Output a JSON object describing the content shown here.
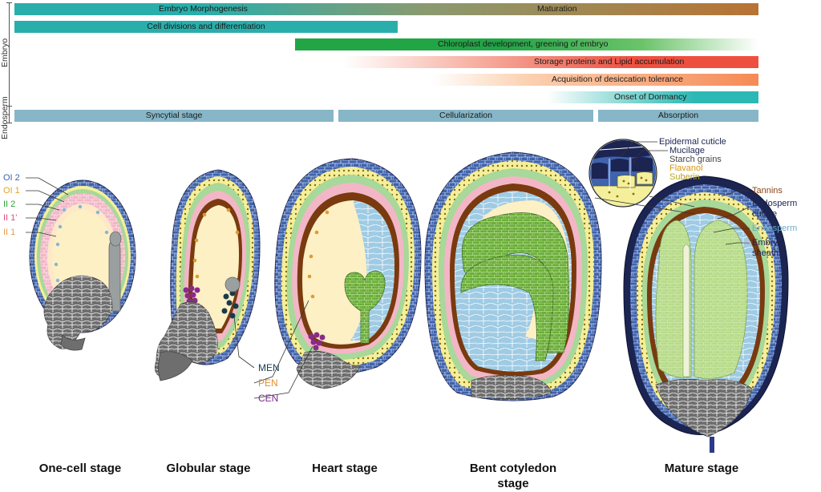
{
  "timeline": {
    "side_labels": {
      "embryo": "Embryo",
      "endosperm": "Endosperm"
    },
    "bars": {
      "embryo_morphogenesis": "Embryo Morphogenesis",
      "maturation": "Maturation",
      "cell_division": "Cell divisions and differentiation",
      "chloroplast": "Chloroplast development, greening of embryo",
      "storage": "Storage proteins and Lipid accumulation",
      "desiccation": "Acquisition of desiccation tolerance",
      "dormancy": "Onset of Dormancy"
    },
    "endosperm_bars": {
      "syncytial": "Syncytial stage",
      "cellularization": "Cellularization",
      "absorption": "Absorption"
    }
  },
  "integument_labels": [
    "OI 2",
    "OI 1",
    "II 2",
    "II 1'",
    "II 1"
  ],
  "endosperm_nuclei_labels": [
    "MEN",
    "PEN",
    "CEN"
  ],
  "inset_labels": [
    "Epidermal cuticle",
    "Mucilage",
    "Starch grains",
    "Flavanol",
    "Suberin"
  ],
  "mature_labels": {
    "tannins": "Tannins",
    "endosperm_cuticle_1": "Endosperm",
    "endosperm_cuticle_2": "cuticle",
    "endosperm": "Endosperm",
    "embryo_sheath_1": "Embryo",
    "embryo_sheath_2": "sheath"
  },
  "stages": {
    "one_cell": "One-cell stage",
    "globular": "Globular stage",
    "heart": "Heart stage",
    "bent_1": "Bent cotyledon",
    "bent_2": "stage",
    "mature": "Mature stage"
  },
  "colors": {
    "teal": "#2aaeab",
    "orange_brown": "#b87333",
    "green": "#2aa845",
    "red": "#ee5040",
    "salmon": "#f58a55",
    "endosperm_blue": "#86b6c7",
    "seed_coat_blue": "#3f63ad",
    "navy": "#1c2452",
    "cream": "#fdf0c4",
    "embryo_green": "#6cae3a",
    "pink": "#f3b6c6",
    "light_green": "#a8d89a",
    "yellow": "#f4ef9a",
    "brown": "#7a3a0f",
    "gray": "#8a8a8a",
    "light_blue": "#9fcbe4"
  }
}
